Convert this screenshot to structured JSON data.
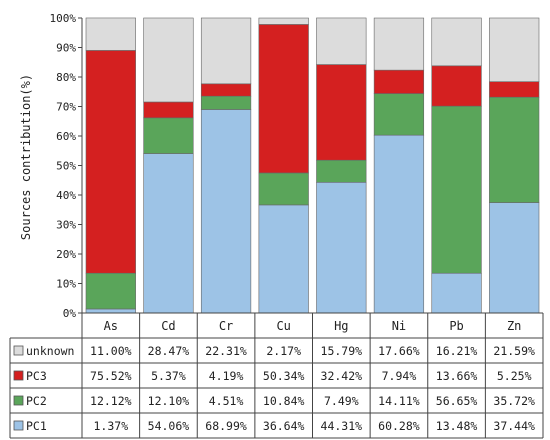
{
  "chart_data": {
    "type": "stacked_bar_with_table",
    "ylabel": "Sources contribution(%)",
    "ylim": [
      0,
      100
    ],
    "y_ticks": [
      "0%",
      "10%",
      "20%",
      "30%",
      "40%",
      "50%",
      "60%",
      "70%",
      "80%",
      "90%",
      "100%"
    ],
    "categories": [
      "As",
      "Cd",
      "Cr",
      "Cu",
      "Hg",
      "Ni",
      "Pb",
      "Zn"
    ],
    "series": [
      {
        "name": "PC1",
        "color": "#9dc3e6",
        "values": [
          1.37,
          54.06,
          68.99,
          36.64,
          44.31,
          60.28,
          13.48,
          37.44
        ],
        "labels": [
          "1.37%",
          "54.06%",
          "68.99%",
          "36.64%",
          "44.31%",
          "60.28%",
          "13.48%",
          "37.44%"
        ]
      },
      {
        "name": "PC2",
        "color": "#5aa55a",
        "values": [
          12.12,
          12.1,
          4.51,
          10.84,
          7.49,
          14.11,
          56.65,
          35.72
        ],
        "labels": [
          "12.12%",
          "12.10%",
          "4.51%",
          "10.84%",
          "7.49%",
          "14.11%",
          "56.65%",
          "35.72%"
        ]
      },
      {
        "name": "PC3",
        "color": "#d42020",
        "values": [
          75.52,
          5.37,
          4.19,
          50.34,
          32.42,
          7.94,
          13.66,
          5.25
        ],
        "labels": [
          "75.52%",
          "5.37%",
          "4.19%",
          "50.34%",
          "32.42%",
          "7.94%",
          "13.66%",
          "5.25%"
        ]
      },
      {
        "name": "unknown",
        "color": "#dcdcdc",
        "values": [
          11.0,
          28.47,
          22.31,
          2.17,
          15.79,
          17.66,
          16.21,
          21.59
        ],
        "labels": [
          "11.00%",
          "28.47%",
          "22.31%",
          "2.17%",
          "15.79%",
          "17.66%",
          "16.21%",
          "21.59%"
        ]
      }
    ],
    "table_row_order": [
      "unknown",
      "PC3",
      "PC2",
      "PC1"
    ],
    "grid": false,
    "legend_placement": "table-left"
  }
}
